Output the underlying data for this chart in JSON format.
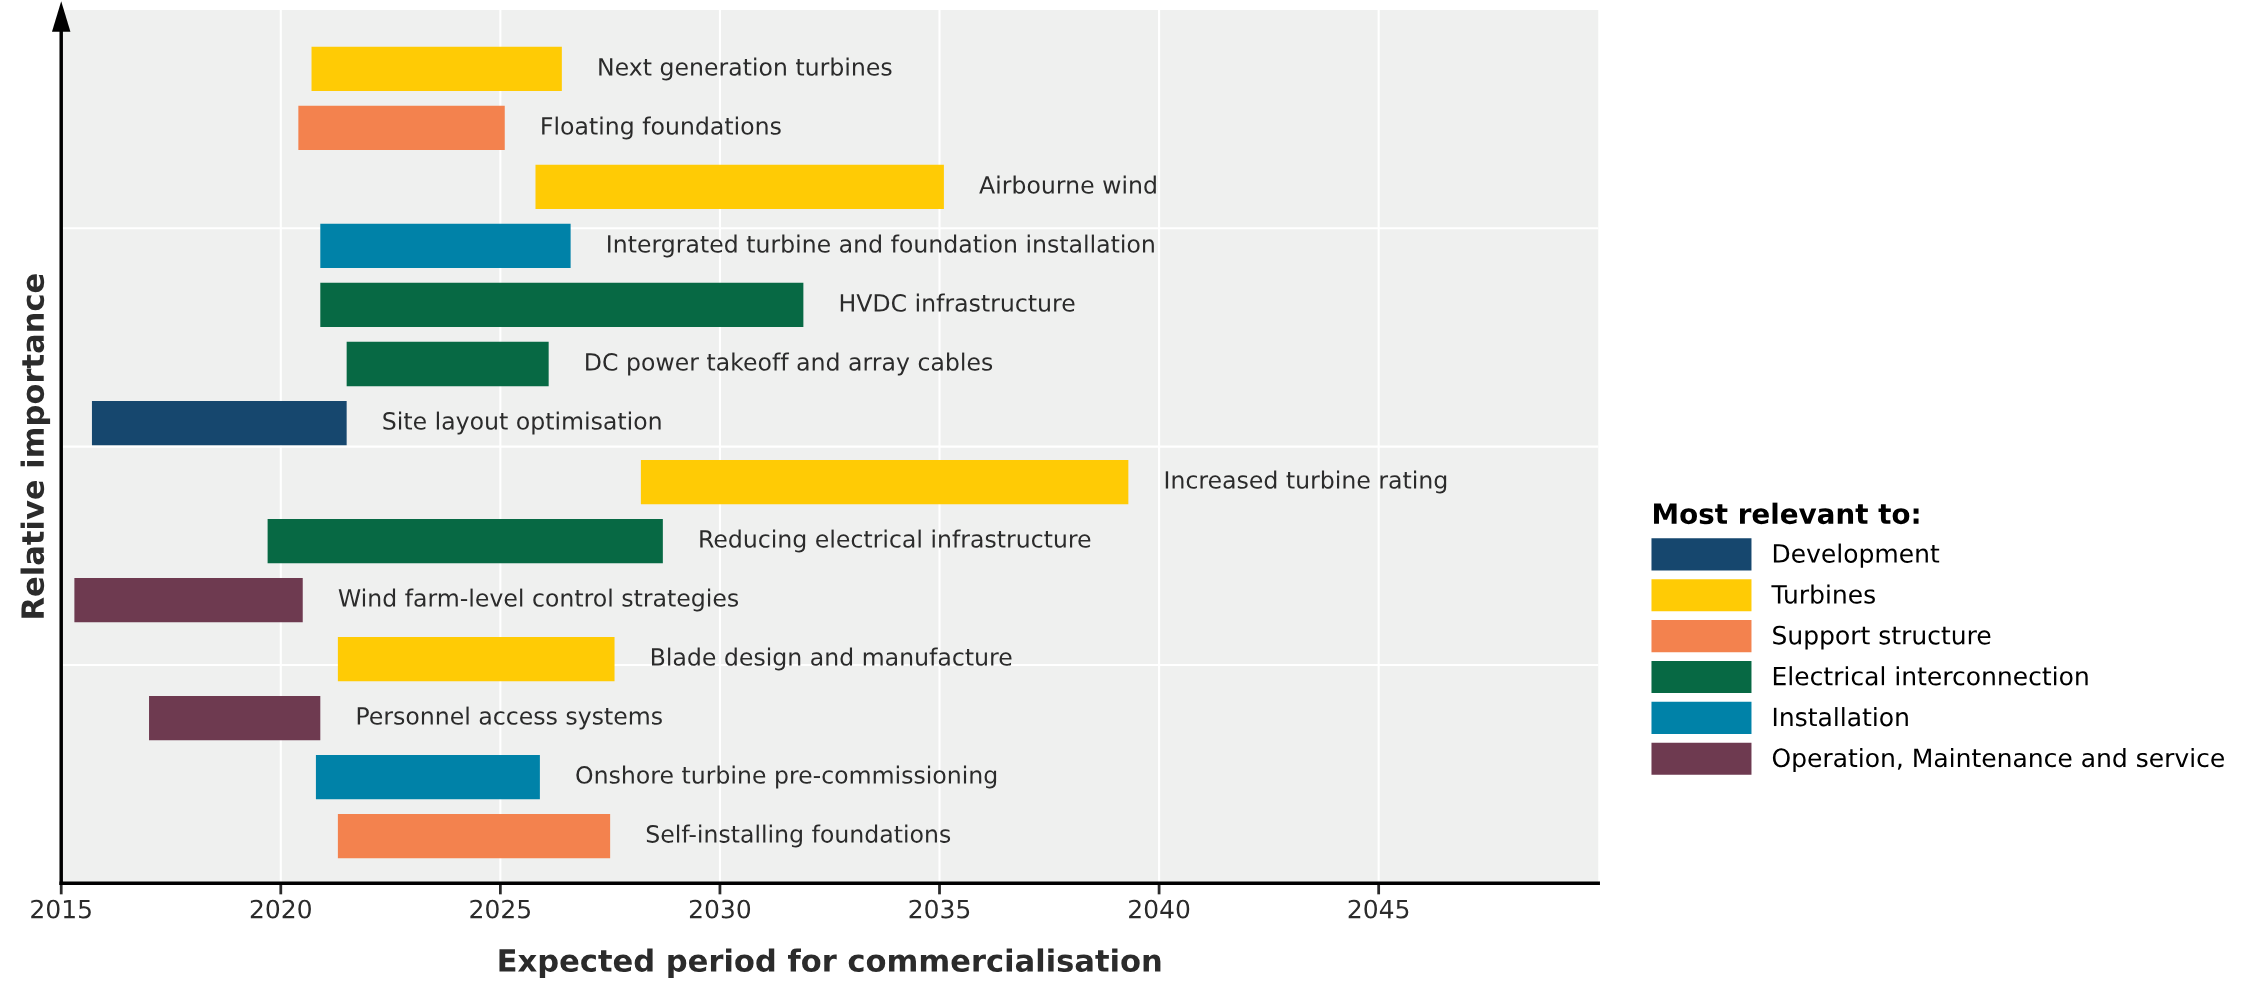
{
  "chart_data": {
    "type": "bar",
    "orientation": "horizontal",
    "xlabel": "Expected period for commercialisation",
    "ylabel": "Relative importance",
    "legend_title": "Most relevant to:",
    "legend": "right",
    "grid": true,
    "tick_labels": "x",
    "categories": [
      "Next generation turbines",
      "Floating foundations",
      "Airbourne wind",
      "Intergrated turbine and foundation installation",
      "HVDC infrastructure",
      "DC power takeoff and array cables",
      "Site layout optimisation",
      "Increased turbine rating",
      "Reducing electrical infrastructure",
      "Wind farm-level control strategies",
      "Blade design and manufacture",
      "Personnel access systems",
      "Onshore turbine pre-commissioning",
      "Self-installing foundations"
    ],
    "series": [
      {
        "name": "Development",
        "color": "#16476e",
        "base": [
          null,
          null,
          null,
          null,
          null,
          null,
          2015.7,
          null,
          null,
          null,
          null,
          null,
          null,
          null
        ],
        "values": [
          null,
          null,
          null,
          null,
          null,
          null,
          5.8,
          null,
          null,
          null,
          null,
          null,
          null,
          null
        ]
      },
      {
        "name": "Turbines",
        "color": "#ffcb05",
        "base": [
          2020.7,
          null,
          2025.8,
          null,
          null,
          null,
          null,
          2028.2,
          null,
          null,
          2021.3,
          null,
          null,
          null
        ],
        "values": [
          5.7,
          null,
          9.3,
          null,
          null,
          null,
          null,
          11.1,
          null,
          null,
          6.3,
          null,
          null,
          null
        ]
      },
      {
        "name": "Support structure",
        "color": "#f3824e",
        "base": [
          null,
          2020.4,
          null,
          null,
          null,
          null,
          null,
          null,
          null,
          null,
          null,
          null,
          null,
          2021.3
        ],
        "values": [
          null,
          4.7,
          null,
          null,
          null,
          null,
          null,
          null,
          null,
          null,
          null,
          null,
          null,
          6.2
        ]
      },
      {
        "name": "Electrical interconnection",
        "color": "#076944",
        "base": [
          null,
          null,
          null,
          null,
          2020.9,
          2021.5,
          null,
          null,
          2019.7,
          null,
          null,
          null,
          null,
          null
        ],
        "values": [
          null,
          null,
          null,
          null,
          11.0,
          4.6,
          null,
          null,
          9.0,
          null,
          null,
          null,
          null,
          null
        ]
      },
      {
        "name": "Installation",
        "color": "#0082a8",
        "base": [
          null,
          null,
          null,
          2020.9,
          null,
          null,
          null,
          null,
          null,
          null,
          null,
          null,
          2020.8,
          null
        ],
        "values": [
          null,
          null,
          null,
          5.7,
          null,
          null,
          null,
          null,
          null,
          null,
          null,
          null,
          5.1,
          null
        ]
      },
      {
        "name": "Operation, Maintenance and service",
        "color": "#6e3a50",
        "base": [
          null,
          null,
          null,
          null,
          null,
          null,
          null,
          null,
          null,
          2015.3,
          null,
          2017.0,
          null,
          null
        ],
        "values": [
          null,
          null,
          null,
          null,
          null,
          null,
          null,
          null,
          null,
          5.2,
          null,
          3.9,
          null,
          null
        ]
      }
    ],
    "xlim": [
      2015,
      2050
    ],
    "xticks": [
      2015,
      2020,
      2025,
      2030,
      2035,
      2040,
      2045
    ]
  }
}
